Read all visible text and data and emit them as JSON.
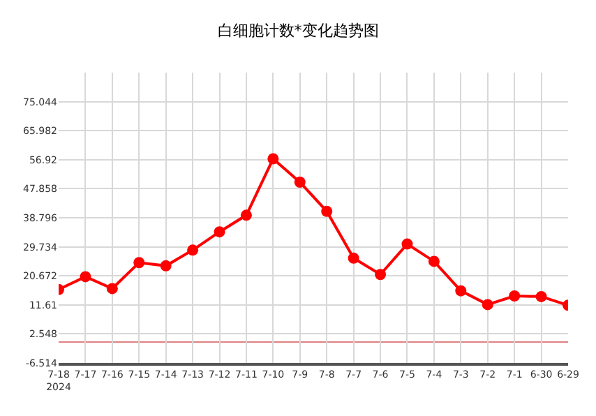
{
  "chart_data": {
    "type": "line",
    "title": "白细胞计数*变化趋势图",
    "categories": [
      "7-18\n2024",
      "7-17",
      "7-16",
      "7-15",
      "7-14",
      "7-13",
      "7-12",
      "7-11",
      "7-10",
      "7-9",
      "7-8",
      "7-7",
      "7-6",
      "7-5",
      "7-4",
      "7-3",
      "7-2",
      "7-1",
      "6-30",
      "6-29"
    ],
    "series": [
      {
        "color": "#ff0000",
        "values": [
          16.4,
          20.4,
          16.7,
          24.8,
          23.8,
          28.7,
          34.4,
          39.6,
          57.2,
          49.9,
          40.8,
          26.2,
          21.1,
          30.6,
          25.2,
          16.0,
          11.7,
          14.4,
          14.2,
          11.5
        ]
      }
    ],
    "ylim": [
      -6.514,
      84.106
    ],
    "yticks": [
      -6.514,
      2.548,
      11.61,
      20.672,
      29.734,
      38.796,
      47.858,
      56.92,
      65.982,
      75.044
    ],
    "ref_lines": [
      {
        "axis": "y",
        "value": 0,
        "color": "#e08080"
      }
    ],
    "grid": true,
    "marker": "circle",
    "line_style": "solid"
  }
}
